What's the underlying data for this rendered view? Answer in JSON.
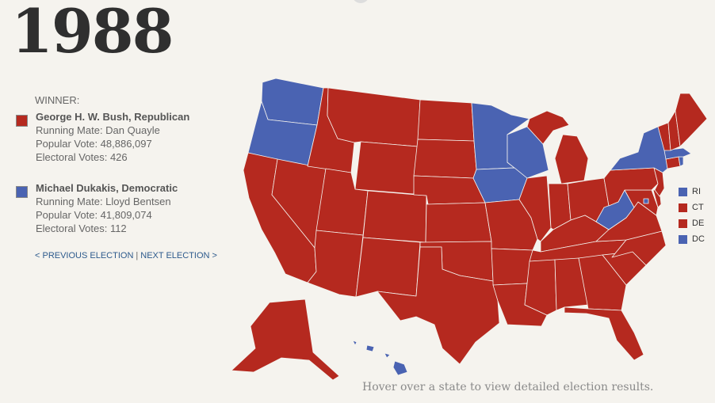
{
  "year": "1988",
  "winner_label": "WINNER:",
  "colors": {
    "republican": "#b5291f",
    "democratic": "#4a63b2"
  },
  "candidates": [
    {
      "name": "George H. W. Bush, Republican",
      "running_mate": "Running Mate: Dan Quayle",
      "popular_vote": "Popular Vote: 48,886,097",
      "electoral_votes": "Electoral Votes: 426",
      "party": "republican"
    },
    {
      "name": "Michael Dukakis, Democratic",
      "running_mate": "Running Mate: Lloyd Bentsen",
      "popular_vote": "Popular Vote: 41,809,074",
      "electoral_votes": "Electoral Votes: 112",
      "party": "democratic"
    }
  ],
  "nav": {
    "previous": "< PREVIOUS ELECTION",
    "separator": "|",
    "next": "NEXT ELECTION >"
  },
  "small_states": [
    {
      "label": "RI",
      "party": "democratic"
    },
    {
      "label": "CT",
      "party": "republican"
    },
    {
      "label": "DE",
      "party": "republican"
    },
    {
      "label": "DC",
      "party": "democratic"
    }
  ],
  "hover_note": "Hover over a state to view detailed election results.",
  "map_states": {
    "democratic": [
      "WA",
      "OR",
      "MN",
      "WI",
      "IA",
      "WV",
      "NY",
      "MA",
      "RI",
      "DC",
      "HI"
    ],
    "republican": [
      "CA",
      "NV",
      "ID",
      "MT",
      "WY",
      "UT",
      "AZ",
      "CO",
      "NM",
      "ND",
      "SD",
      "NE",
      "KS",
      "OK",
      "TX",
      "MO",
      "AR",
      "LA",
      "IL",
      "MI",
      "IN",
      "OH",
      "KY",
      "TN",
      "MS",
      "AL",
      "GA",
      "FL",
      "SC",
      "NC",
      "VA",
      "PA",
      "NJ",
      "DE",
      "MD",
      "CT",
      "VT",
      "NH",
      "ME",
      "AK"
    ]
  }
}
